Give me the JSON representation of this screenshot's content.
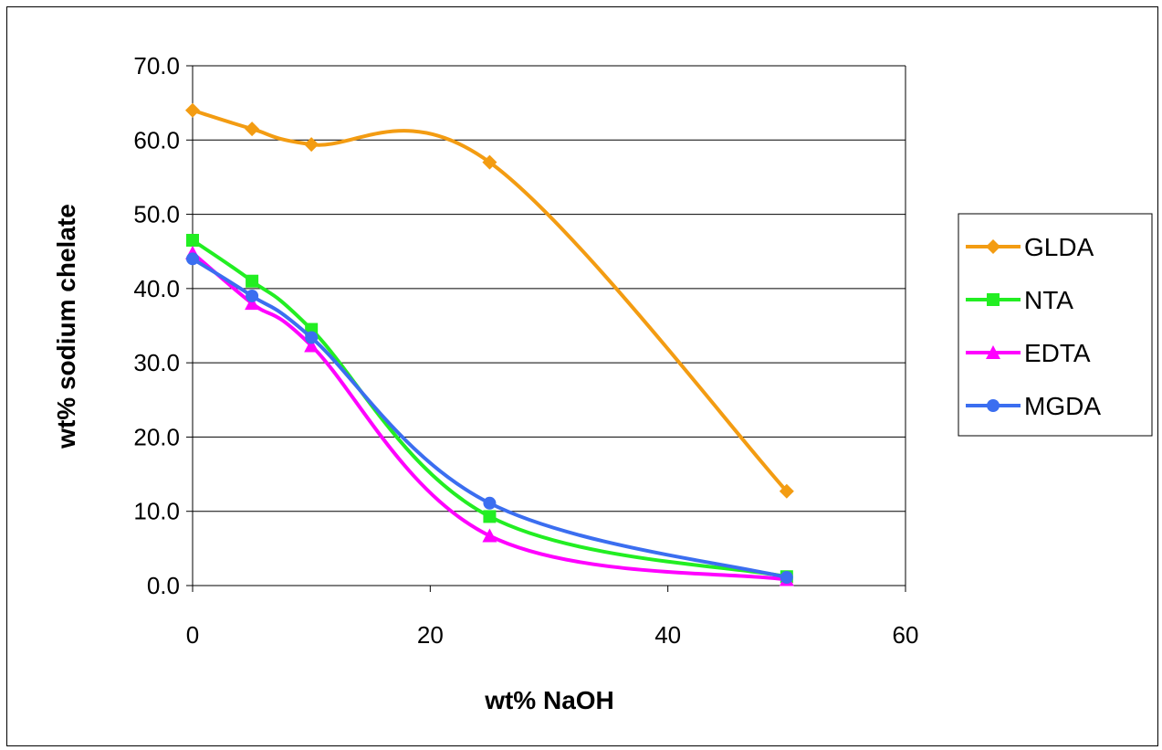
{
  "chart_data": {
    "type": "line",
    "smooth": true,
    "xlabel": "wt% NaOH",
    "ylabel": "wt% sodium chelate",
    "xlim": [
      0,
      60
    ],
    "ylim": [
      0,
      70
    ],
    "xticks": [
      0,
      20,
      40,
      60
    ],
    "yticks": [
      0,
      10,
      20,
      30,
      40,
      50,
      60,
      70
    ],
    "xtick_labels": [
      "0",
      "20",
      "40",
      "60"
    ],
    "ytick_labels": [
      "0.0",
      "10.0",
      "20.0",
      "30.0",
      "40.0",
      "50.0",
      "60.0",
      "70.0"
    ],
    "grid": "horizontal",
    "legend_position": "right",
    "series": [
      {
        "name": "GLDA",
        "color": "#f39c12",
        "marker": "diamond",
        "x": [
          0,
          5,
          10,
          25,
          50
        ],
        "y": [
          64.0,
          61.5,
          59.4,
          57.0,
          12.7
        ]
      },
      {
        "name": "NTA",
        "color": "#22ee22",
        "marker": "square",
        "x": [
          0,
          5,
          10,
          25,
          50
        ],
        "y": [
          46.5,
          41.0,
          34.5,
          9.3,
          1.2
        ]
      },
      {
        "name": "EDTA",
        "color": "#ff00ff",
        "marker": "triangle",
        "x": [
          0,
          5,
          10,
          25,
          50
        ],
        "y": [
          44.8,
          38.0,
          32.3,
          6.7,
          0.8
        ]
      },
      {
        "name": "MGDA",
        "color": "#3b6ef0",
        "marker": "circle",
        "x": [
          0,
          5,
          10,
          25,
          50
        ],
        "y": [
          44.0,
          39.0,
          33.4,
          11.1,
          1.1
        ]
      }
    ]
  }
}
